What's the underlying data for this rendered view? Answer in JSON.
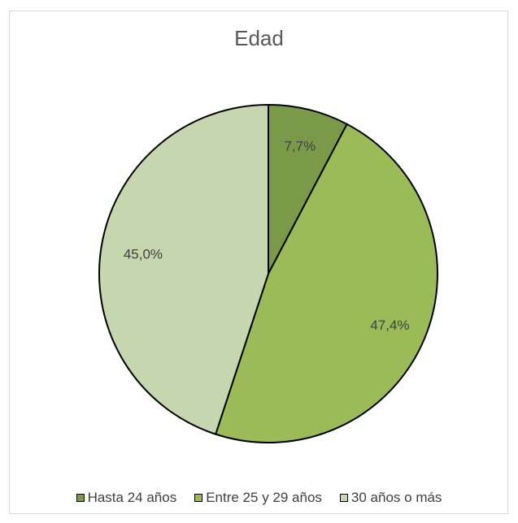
{
  "chart_data": {
    "type": "pie",
    "title": "Edad",
    "start_angle_deg": 0,
    "direction": "clockwise",
    "legend_position": "bottom",
    "slices": [
      {
        "label": "Hasta 24 años",
        "value": 7.7,
        "display": "7,7%",
        "color": "#7a9a4a"
      },
      {
        "label": "Entre 25 y 29 años",
        "value": 47.4,
        "display": "47,4%",
        "color": "#9bbb59"
      },
      {
        "label": "30 años o más",
        "value": 45.0,
        "display": "45,0%",
        "color": "#c6d6ae"
      }
    ]
  }
}
